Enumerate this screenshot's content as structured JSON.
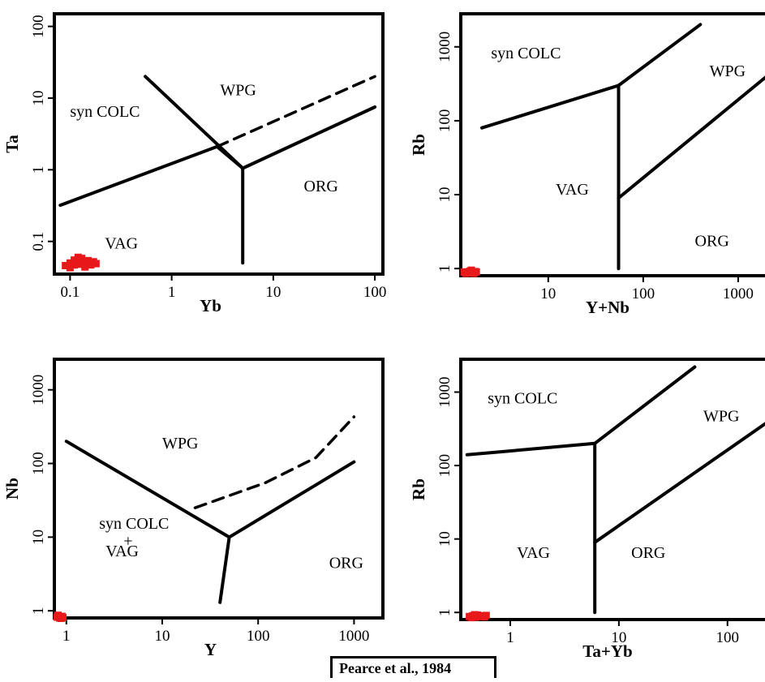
{
  "citation": "Pearce et al., 1984",
  "chart_data": [
    {
      "type": "scatter",
      "xlabel": "Yb",
      "ylabel": "Ta",
      "xscale": "log",
      "yscale": "log",
      "xlim": [
        0.07,
        120
      ],
      "ylim": [
        0.035,
        150
      ],
      "xticks": [
        {
          "v": 0.1,
          "label": "0.1"
        },
        {
          "v": 1,
          "label": "1"
        },
        {
          "v": 10,
          "label": "10"
        },
        {
          "v": 100,
          "label": "100"
        }
      ],
      "yticks": [
        {
          "v": 0.1,
          "label": "0.1"
        },
        {
          "v": 1,
          "label": "1"
        },
        {
          "v": 10,
          "label": "10"
        },
        {
          "v": 100,
          "label": "100"
        }
      ],
      "fields": [
        {
          "label": "syn COLC",
          "x": 0.1,
          "y": 5.5
        },
        {
          "label": "WPG",
          "x": 3,
          "y": 11
        },
        {
          "label": "ORG",
          "x": 20,
          "y": 0.5
        },
        {
          "label": "VAG",
          "x": 0.22,
          "y": 0.08
        }
      ],
      "boundaries": [
        {
          "style": "solid",
          "points": [
            [
              0.08,
              0.32
            ],
            [
              2.8,
              2.1
            ],
            [
              5,
              1.05
            ],
            [
              100,
              7.5
            ]
          ]
        },
        {
          "style": "solid",
          "points": [
            [
              0.55,
              20
            ],
            [
              5,
              1.05
            ]
          ]
        },
        {
          "style": "solid",
          "points": [
            [
              5,
              1.05
            ],
            [
              5,
              0.05
            ]
          ]
        },
        {
          "style": "dashed",
          "points": [
            [
              2.8,
              2.1
            ],
            [
              100,
              20
            ]
          ]
        }
      ],
      "points": [
        [
          0.09,
          0.046
        ],
        [
          0.1,
          0.05
        ],
        [
          0.11,
          0.055
        ],
        [
          0.12,
          0.048
        ],
        [
          0.13,
          0.058
        ],
        [
          0.14,
          0.05
        ],
        [
          0.15,
          0.054
        ],
        [
          0.16,
          0.047
        ],
        [
          0.17,
          0.052
        ],
        [
          0.12,
          0.06
        ],
        [
          0.1,
          0.043
        ],
        [
          0.14,
          0.044
        ],
        [
          0.18,
          0.049
        ],
        [
          0.11,
          0.047
        ]
      ],
      "point_color": "#e8191a"
    },
    {
      "type": "scatter",
      "xlabel": "Y+Nb",
      "ylabel": "Rb",
      "xscale": "log",
      "yscale": "log",
      "xlim": [
        1.2,
        2200
      ],
      "ylim": [
        0.8,
        2800
      ],
      "xticks": [
        {
          "v": 10,
          "label": "10"
        },
        {
          "v": 100,
          "label": "100"
        },
        {
          "v": 1000,
          "label": "1000"
        }
      ],
      "yticks": [
        {
          "v": 1,
          "label": "1"
        },
        {
          "v": 10,
          "label": "10"
        },
        {
          "v": 100,
          "label": "100"
        },
        {
          "v": 1000,
          "label": "1000"
        }
      ],
      "fields": [
        {
          "label": "syn COLC",
          "x": 2.5,
          "y": 700
        },
        {
          "label": "WPG",
          "x": 500,
          "y": 400
        },
        {
          "label": "VAG",
          "x": 12,
          "y": 10
        },
        {
          "label": "ORG",
          "x": 350,
          "y": 2
        }
      ],
      "boundaries": [
        {
          "style": "solid",
          "points": [
            [
              2,
              80
            ],
            [
              55,
              300
            ],
            [
              400,
              2000
            ]
          ]
        },
        {
          "style": "solid",
          "points": [
            [
              55,
              300
            ],
            [
              55,
              1
            ]
          ]
        },
        {
          "style": "solid",
          "points": [
            [
              55,
              9
            ],
            [
              2000,
              400
            ]
          ]
        }
      ],
      "points": [
        [
          1.3,
          0.9
        ],
        [
          1.4,
          0.88
        ],
        [
          1.5,
          0.92
        ],
        [
          1.6,
          0.87
        ],
        [
          1.7,
          0.91
        ],
        [
          1.35,
          0.86
        ],
        [
          1.55,
          0.95
        ],
        [
          1.45,
          0.9
        ],
        [
          1.65,
          0.86
        ],
        [
          1.75,
          0.9
        ]
      ],
      "point_color": "#e8191a"
    },
    {
      "type": "scatter",
      "xlabel": "Y",
      "ylabel": "Nb",
      "xscale": "log",
      "yscale": "log",
      "xlim": [
        0.75,
        2000
      ],
      "ylim": [
        0.8,
        2600
      ],
      "xticks": [
        {
          "v": 1,
          "label": "1"
        },
        {
          "v": 10,
          "label": "10"
        },
        {
          "v": 100,
          "label": "100"
        },
        {
          "v": 1000,
          "label": "1000"
        }
      ],
      "yticks": [
        {
          "v": 1,
          "label": "1"
        },
        {
          "v": 10,
          "label": "10"
        },
        {
          "v": 100,
          "label": "100"
        },
        {
          "v": 1000,
          "label": "1000"
        }
      ],
      "fields": [
        {
          "label": "WPG",
          "x": 10,
          "y": 160
        },
        {
          "label": "syn COLC",
          "x": 2.2,
          "y": 13
        },
        {
          "label": "+",
          "x": 2.2,
          "y": 7.5
        },
        {
          "label": "VAG",
          "x": 2.2,
          "y": 5.5
        },
        {
          "label": "ORG",
          "x": 550,
          "y": 3.8
        }
      ],
      "boundaries": [
        {
          "style": "solid",
          "points": [
            [
              1,
              200
            ],
            [
              50,
              10
            ],
            [
              1000,
              105
            ]
          ]
        },
        {
          "style": "solid",
          "points": [
            [
              50,
              10
            ],
            [
              40,
              1.3
            ]
          ]
        },
        {
          "style": "dashed",
          "points": [
            [
              22,
              25
            ],
            [
              120,
              55
            ],
            [
              400,
              120
            ],
            [
              1000,
              430
            ]
          ]
        }
      ],
      "points": [
        [
          0.8,
          0.82
        ],
        [
          0.85,
          0.8
        ],
        [
          0.9,
          0.84
        ],
        [
          0.82,
          0.87
        ],
        [
          0.88,
          0.79
        ],
        [
          0.92,
          0.81
        ]
      ],
      "point_color": "#e8191a"
    },
    {
      "type": "scatter",
      "xlabel": "Ta+Yb",
      "ylabel": "Rb",
      "xscale": "log",
      "yscale": "log",
      "xlim": [
        0.35,
        250
      ],
      "ylim": [
        0.8,
        2800
      ],
      "xticks": [
        {
          "v": 1,
          "label": "1"
        },
        {
          "v": 10,
          "label": "10"
        },
        {
          "v": 100,
          "label": "100"
        }
      ],
      "yticks": [
        {
          "v": 1,
          "label": "1"
        },
        {
          "v": 10,
          "label": "10"
        },
        {
          "v": 100,
          "label": "100"
        },
        {
          "v": 1000,
          "label": "1000"
        }
      ],
      "fields": [
        {
          "label": "syn COLC",
          "x": 0.62,
          "y": 700
        },
        {
          "label": "WPG",
          "x": 60,
          "y": 400
        },
        {
          "label": "VAG",
          "x": 1.15,
          "y": 5.5
        },
        {
          "label": "ORG",
          "x": 13,
          "y": 5.5
        }
      ],
      "boundaries": [
        {
          "style": "solid",
          "points": [
            [
              0.4,
              140
            ],
            [
              6,
              200
            ],
            [
              50,
              2200
            ]
          ]
        },
        {
          "style": "solid",
          "points": [
            [
              6,
              200
            ],
            [
              6,
              1
            ]
          ]
        },
        {
          "style": "solid",
          "points": [
            [
              6,
              9
            ],
            [
              240,
              400
            ]
          ]
        }
      ],
      "points": [
        [
          0.42,
          0.88
        ],
        [
          0.45,
          0.9
        ],
        [
          0.48,
          0.86
        ],
        [
          0.5,
          0.92
        ],
        [
          0.52,
          0.88
        ],
        [
          0.55,
          0.9
        ],
        [
          0.58,
          0.87
        ],
        [
          0.44,
          0.85
        ],
        [
          0.6,
          0.91
        ],
        [
          0.47,
          0.93
        ]
      ],
      "point_color": "#e8191a"
    }
  ]
}
